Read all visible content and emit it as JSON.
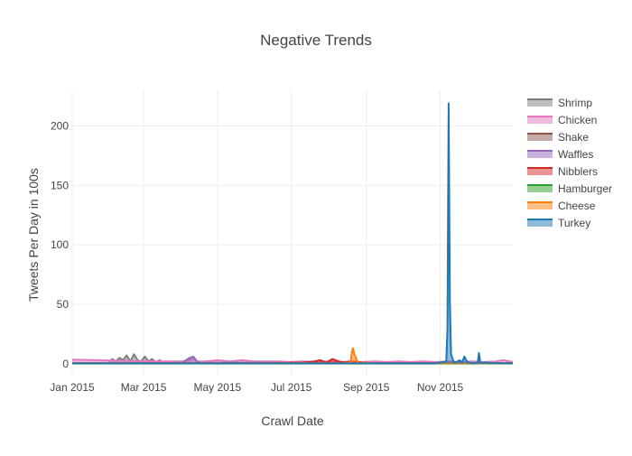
{
  "chart_data": {
    "type": "area",
    "title": "Negative Trends",
    "xlabel": "Crawl Date",
    "ylabel": "Tweets Per Day in 100s",
    "x_start": "2015-01-01",
    "x_end": "2015-12-31",
    "x_range_days": [
      0,
      364
    ],
    "ylim": [
      -10,
      230
    ],
    "y_ticks": [
      0,
      50,
      100,
      150,
      200
    ],
    "x_ticks": [
      {
        "label": "Jan 2015",
        "day": 0
      },
      {
        "label": "Mar 2015",
        "day": 59
      },
      {
        "label": "May 2015",
        "day": 120
      },
      {
        "label": "Jul 2015",
        "day": 181
      },
      {
        "label": "Sep 2015",
        "day": 243
      },
      {
        "label": "Nov 2015",
        "day": 304
      }
    ],
    "legend_position": "right",
    "series": [
      {
        "name": "Shrimp",
        "color": "#7f7f7f",
        "x": [
          0,
          30,
          33,
          36,
          39,
          42,
          45,
          48,
          51,
          54,
          57,
          60,
          63,
          66,
          69,
          72,
          75,
          80,
          90,
          100,
          110,
          150,
          200,
          250,
          300,
          320,
          364
        ],
        "y": [
          0.5,
          0.5,
          4,
          2,
          5,
          3,
          7,
          2,
          8,
          3,
          2,
          6,
          2,
          4,
          1,
          3,
          1,
          0.5,
          1,
          0.5,
          1,
          0.5,
          1,
          0.5,
          0.5,
          0.5,
          0.5
        ]
      },
      {
        "name": "Chicken",
        "color": "#e377c2",
        "x": [
          0,
          20,
          40,
          60,
          80,
          95,
          98,
          100,
          103,
          110,
          120,
          130,
          140,
          150,
          160,
          170,
          180,
          190,
          200,
          210,
          220,
          230,
          240,
          250,
          260,
          270,
          280,
          290,
          300,
          310,
          320,
          330,
          340,
          350,
          356,
          364
        ],
        "y": [
          3.5,
          3,
          2.5,
          2,
          2,
          2,
          4,
          5,
          2,
          2,
          3,
          2,
          3,
          2,
          2,
          2,
          1.5,
          2,
          1.5,
          2,
          1.5,
          2,
          1.5,
          2,
          1.5,
          2,
          1.5,
          2,
          1.5,
          2,
          1.5,
          2,
          1.5,
          2,
          3,
          1.5
        ]
      },
      {
        "name": "Shake",
        "color": "#8c564b",
        "x": [
          0,
          50,
          100,
          150,
          200,
          250,
          300,
          364
        ],
        "y": [
          0.3,
          0.3,
          0.3,
          0.3,
          0.3,
          0.3,
          0.3,
          0.3
        ]
      },
      {
        "name": "Waffles",
        "color": "#9467bd",
        "x": [
          0,
          90,
          94,
          97,
          100,
          103,
          106,
          130,
          200,
          300,
          364
        ],
        "y": [
          0.5,
          0.5,
          3,
          5,
          6,
          2,
          0.5,
          1,
          0.5,
          0.5,
          0.5
        ]
      },
      {
        "name": "Nibblers",
        "color": "#d62728",
        "x": [
          0,
          150,
          190,
          200,
          205,
          210,
          215,
          220,
          225,
          230,
          240,
          250,
          300,
          364
        ],
        "y": [
          0.5,
          0.5,
          1,
          2,
          3,
          1,
          4,
          2,
          1,
          2,
          1,
          0.5,
          0.5,
          0.5
        ]
      },
      {
        "name": "Hamburger",
        "color": "#2ca02c",
        "x": [
          0,
          100,
          200,
          300,
          364
        ],
        "y": [
          0.2,
          0.2,
          0.2,
          0.2,
          0.2
        ]
      },
      {
        "name": "Cheese",
        "color": "#ff7f0e",
        "x": [
          0,
          225,
          230,
          231,
          232,
          233,
          236,
          250,
          300,
          364
        ],
        "y": [
          0.5,
          0.5,
          1,
          10,
          13,
          8,
          1,
          0.5,
          0.5,
          0.5
        ]
      },
      {
        "name": "Turkey",
        "color": "#1f77b4",
        "x": [
          0,
          300,
          309,
          310,
          311,
          312,
          313,
          315,
          317,
          320,
          322,
          324,
          326,
          328,
          330,
          335,
          336,
          337,
          338,
          340,
          350,
          364
        ],
        "y": [
          0.3,
          0.3,
          2,
          30,
          219,
          52,
          8,
          2,
          1,
          3,
          1,
          6,
          2,
          1,
          0.5,
          1,
          9,
          2,
          0.5,
          1,
          0.5,
          0.5
        ]
      }
    ]
  }
}
